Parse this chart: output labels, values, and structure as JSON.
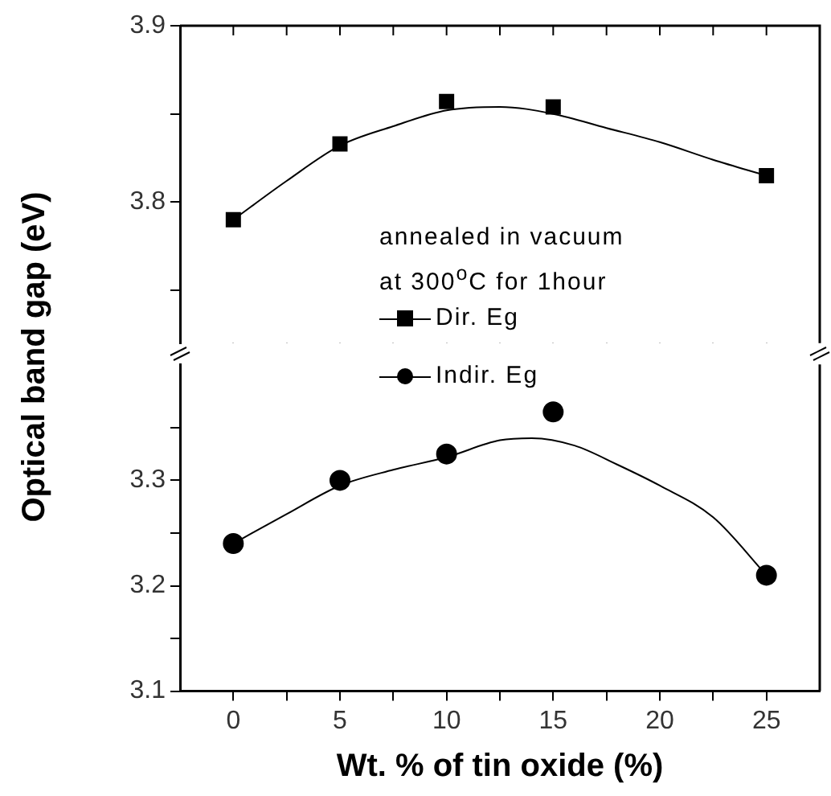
{
  "chart_data": [
    {
      "type": "scatter",
      "ylabel": "Optical band gap (eV)",
      "annotations": [
        "annealed in vacuum",
        "at 300$^{o}$C for 1hour"
      ],
      "legend": "bottom",
      "tick_labels": "y",
      "xlim": [
        -2.5,
        27.5
      ],
      "xticks": [
        {
          "value": 0,
          "label": null
        },
        {
          "value": 2.5,
          "label": null
        },
        {
          "value": 5,
          "label": null
        },
        {
          "value": 7.5,
          "label": null
        },
        {
          "value": 10,
          "label": null
        },
        {
          "value": 12.5,
          "label": null
        },
        {
          "value": 15,
          "label": null
        },
        {
          "value": 17.5,
          "label": null
        },
        {
          "value": 20,
          "label": null
        },
        {
          "value": 22.5,
          "label": null
        },
        {
          "value": 25,
          "label": null
        }
      ],
      "ylim": [
        3.72,
        3.9
      ],
      "yticks": [
        {
          "value": 3.75,
          "label": null
        },
        3.8,
        {
          "value": 3.85,
          "label": null
        },
        3.9
      ],
      "series": [
        {
          "type": "line",
          "color": "#000000",
          "marker": "none",
          "x": [
            0,
            2.5,
            5,
            7.5,
            10,
            12.5,
            15,
            17.5,
            20,
            22.5,
            25
          ],
          "values": [
            3.79,
            3.812,
            3.832,
            3.843,
            3.852,
            3.854,
            3.85,
            3.842,
            3.834,
            3.824,
            3.815
          ]
        },
        {
          "type": "scatter",
          "name": "Dir. Eg",
          "color": "#000000",
          "marker": "square",
          "x": [
            0,
            5,
            10,
            15,
            25
          ],
          "values": [
            3.79,
            3.833,
            3.857,
            3.854,
            3.815
          ]
        }
      ]
    },
    {
      "type": "scatter",
      "xlabel": "Wt. % of tin oxide (%)",
      "legend": "top",
      "xlim": [
        -2.5,
        27.5
      ],
      "xticks": [
        0,
        {
          "value": 2.5,
          "label": null
        },
        5,
        {
          "value": 7.5,
          "label": null
        },
        10,
        {
          "value": 12.5,
          "label": null
        },
        15,
        {
          "value": 17.5,
          "label": null
        },
        20,
        {
          "value": 22.5,
          "label": null
        },
        25
      ],
      "ylim": [
        3.1,
        3.41
      ],
      "yticks": [
        3.1,
        {
          "value": 3.15,
          "label": null
        },
        3.2,
        {
          "value": 3.25,
          "label": null
        },
        3.3,
        {
          "value": 3.35,
          "label": null
        }
      ],
      "series": [
        {
          "type": "line",
          "color": "#000000",
          "marker": "none",
          "x": [
            0,
            2.5,
            5,
            7.5,
            10,
            12.5,
            14,
            16,
            18,
            20,
            22.5,
            25
          ],
          "values": [
            3.24,
            3.268,
            3.295,
            3.31,
            3.322,
            3.338,
            3.34,
            3.333,
            3.315,
            3.295,
            3.265,
            3.21
          ]
        },
        {
          "type": "scatter",
          "name": "Indir. Eg",
          "color": "#000000",
          "marker": "circle",
          "x": [
            0,
            5,
            10,
            15,
            25
          ],
          "values": [
            3.24,
            3.3,
            3.325,
            3.365,
            3.21
          ]
        }
      ]
    }
  ]
}
